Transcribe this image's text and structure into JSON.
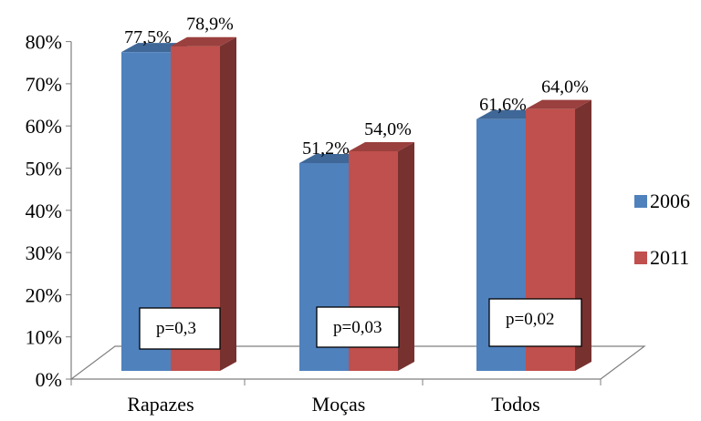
{
  "chart_data": {
    "type": "bar",
    "title": "",
    "xlabel": "",
    "ylabel": "",
    "ylim": [
      0,
      80
    ],
    "yticks": [
      "0%",
      "10%",
      "20%",
      "30%",
      "40%",
      "50%",
      "60%",
      "70%",
      "80%"
    ],
    "categories": [
      "Rapazes",
      "Moças",
      "Todos"
    ],
    "series": [
      {
        "name": "2006",
        "values": [
          77.5,
          51.2,
          61.6
        ],
        "labels": [
          "77,5%",
          "51,2%",
          "61,6%"
        ],
        "color": "#4F81BD"
      },
      {
        "name": "2011",
        "values": [
          78.9,
          54.0,
          64.0
        ],
        "labels": [
          "78,9%",
          "54,0%",
          "64,0%"
        ],
        "color": "#C0504D"
      }
    ],
    "annotations": [
      "p=0,3",
      "p=0,03",
      "p=0,02"
    ],
    "legend_position": "right",
    "style": "3d-clustered-column",
    "grid": false
  }
}
